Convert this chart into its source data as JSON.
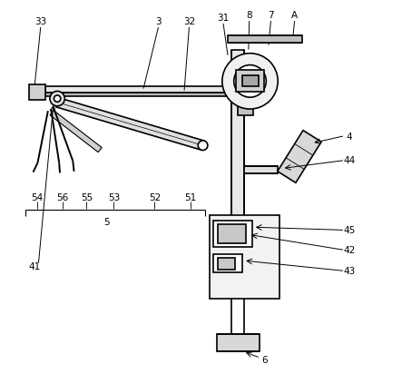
{
  "bg_color": "#ffffff",
  "line_color": "#000000",
  "line_width": 1.2
}
